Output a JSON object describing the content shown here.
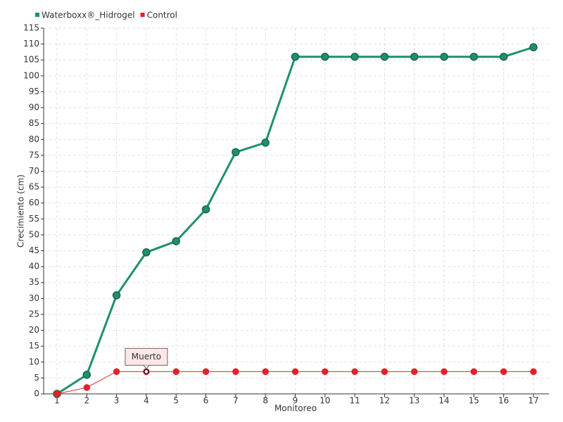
{
  "chart_data": {
    "type": "line",
    "x_label": "Monitoreo",
    "y_label": "Crecimiento (cm)",
    "categories": [
      "1",
      "2",
      "3",
      "4",
      "5",
      "6",
      "7",
      "8",
      "9",
      "10",
      "11",
      "12",
      "13",
      "14",
      "15",
      "16",
      "17"
    ],
    "series": [
      {
        "name": "Waterboxx®_Hidrogel",
        "color": "#1f8f6f",
        "values": [
          0,
          6,
          31,
          44.5,
          48,
          58,
          76,
          79,
          106,
          106,
          106,
          106,
          106,
          106,
          106,
          106,
          109
        ]
      },
      {
        "name": "Control",
        "color": "#e3202b",
        "values": [
          0,
          2,
          7,
          7,
          7,
          7,
          7,
          7,
          7,
          7,
          7,
          7,
          7,
          7,
          7,
          7,
          7
        ]
      }
    ],
    "annotations": [
      {
        "text": "Muerto",
        "x": "4",
        "series": "Control"
      }
    ],
    "ylim": [
      0,
      115
    ],
    "yticks": [
      0,
      5,
      10,
      15,
      20,
      25,
      30,
      35,
      40,
      45,
      50,
      55,
      60,
      65,
      70,
      75,
      80,
      85,
      90,
      95,
      100,
      105,
      110,
      115
    ],
    "grid": true,
    "legend": "top-left"
  }
}
